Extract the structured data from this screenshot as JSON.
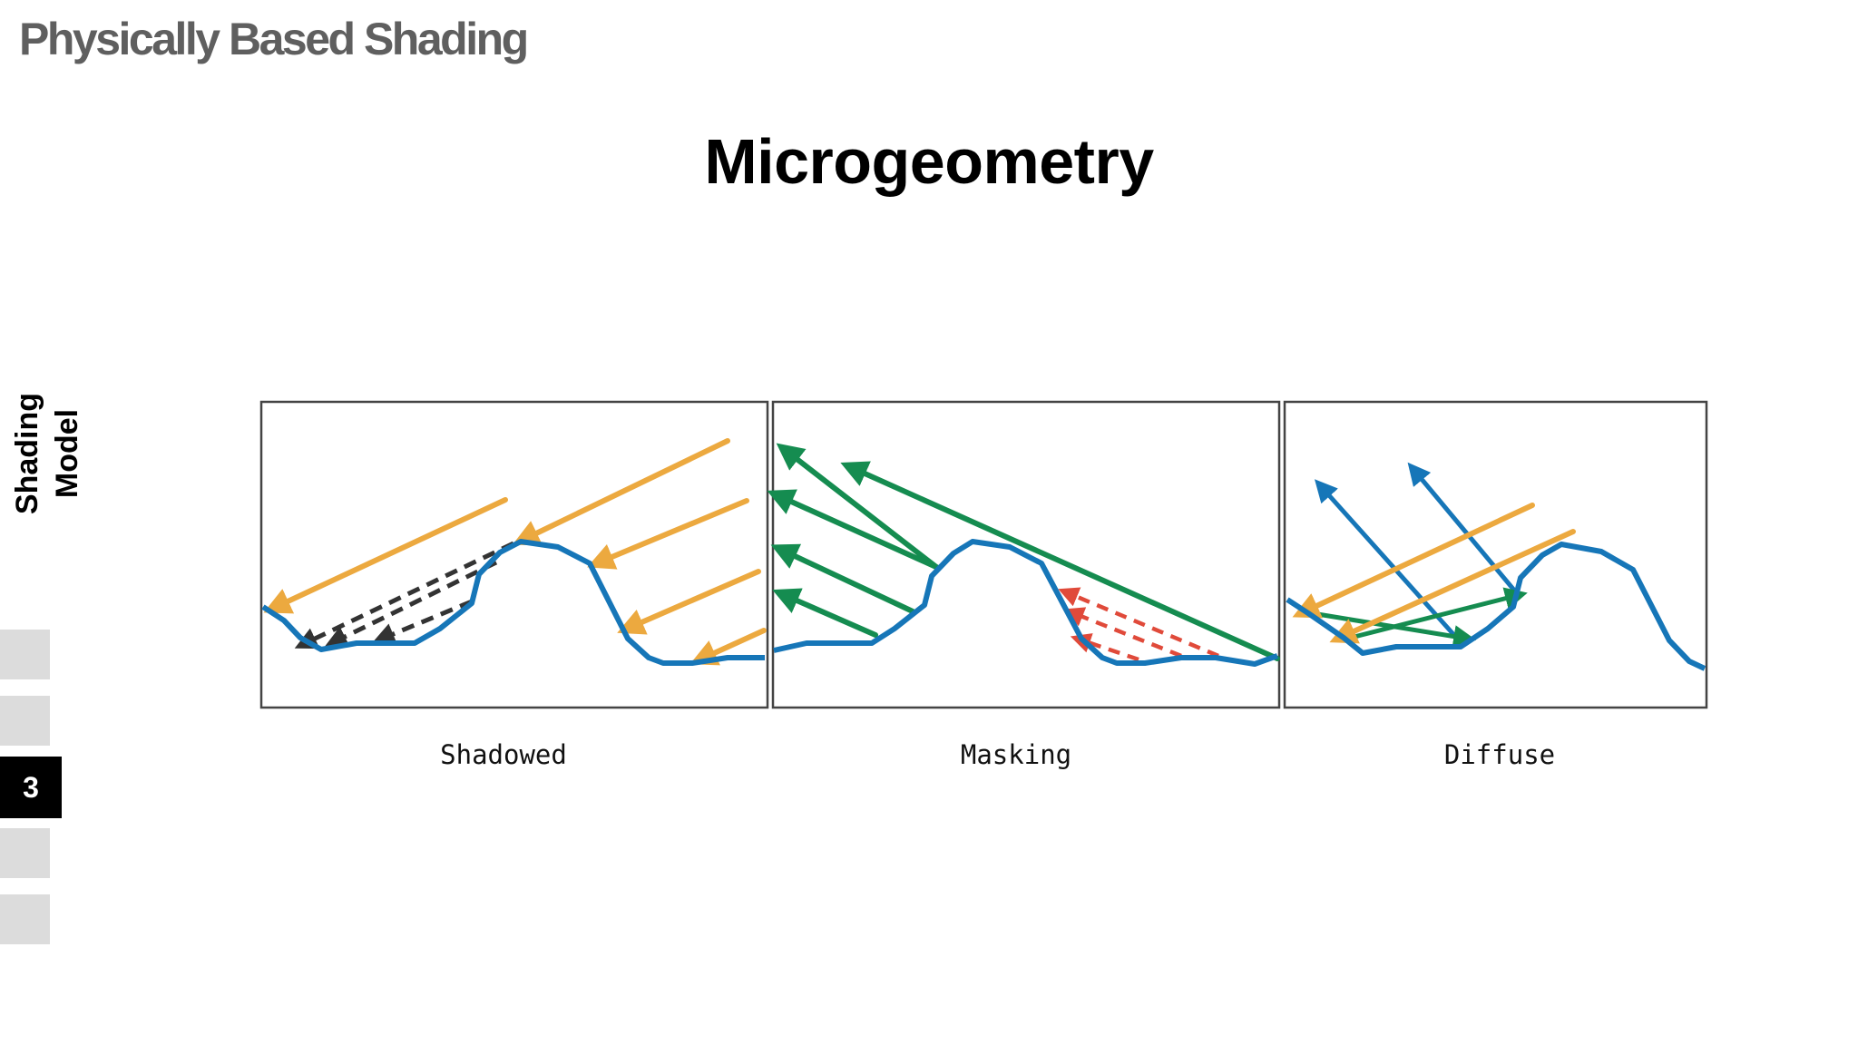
{
  "deck": {
    "title": "Physically Based Shading"
  },
  "slide": {
    "title": "Microgeometry",
    "section": "Shading Model",
    "current_page": "3"
  },
  "panels": [
    {
      "caption": "Shadowed"
    },
    {
      "caption": "Masking"
    },
    {
      "caption": "Diffuse"
    }
  ],
  "colors": {
    "surface": "#1676b8",
    "light": "#eca93f",
    "reflected": "#158c50",
    "shadow": "#333333",
    "masked": "#e04a3a",
    "frame": "#444444"
  }
}
